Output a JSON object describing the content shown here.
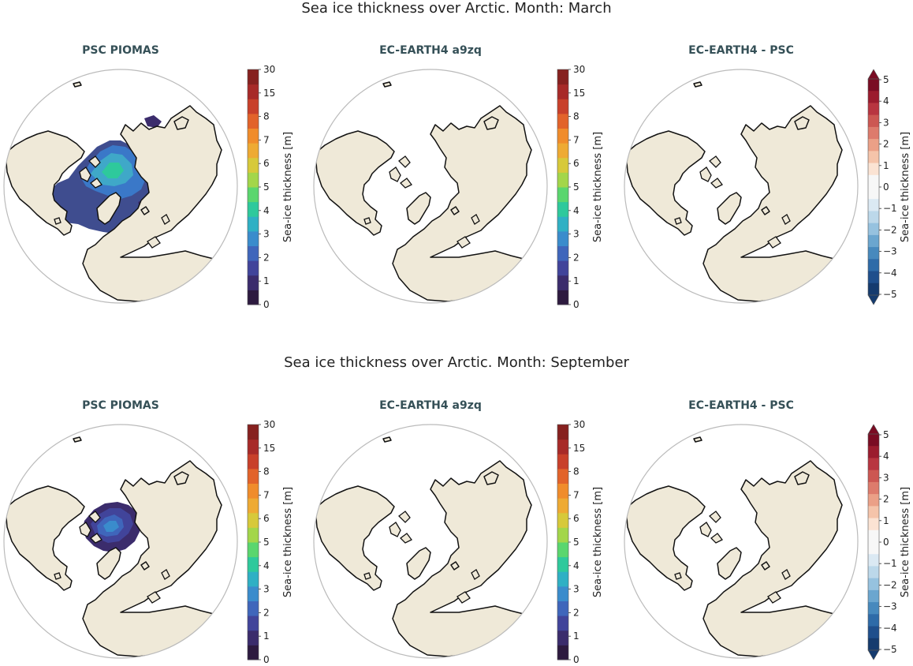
{
  "rows": [
    {
      "title": "Sea ice thickness over Arctic. Month: March",
      "panels": [
        {
          "title": "PSC PIOMAS",
          "ice": "march"
        },
        {
          "title": "EC-EARTH4 a9zq",
          "ice": "none"
        },
        {
          "title": "EC-EARTH4 -  PSC",
          "ice": "none"
        }
      ]
    },
    {
      "title": "Sea ice thickness over Arctic. Month: September",
      "panels": [
        {
          "title": "PSC PIOMAS",
          "ice": "september"
        },
        {
          "title": "EC-EARTH4 a9zq",
          "ice": "none"
        },
        {
          "title": "EC-EARTH4 -  PSC",
          "ice": "none"
        }
      ]
    }
  ],
  "colorbars": {
    "thickness": {
      "label": "Sea-ice thickness [m]",
      "ticks": [
        "0",
        "1",
        "2",
        "3",
        "4",
        "5",
        "6",
        "7",
        "8",
        "15",
        "30"
      ],
      "colors": [
        "#2d1a3f",
        "#3b2c6c",
        "#41449a",
        "#3f66bb",
        "#3a8ccc",
        "#2fb0c4",
        "#2ec99c",
        "#5ad66e",
        "#a3d64a",
        "#d7c93a",
        "#eeaa33",
        "#f08c2b",
        "#e2632a",
        "#c8402a",
        "#a72a28",
        "#86211f"
      ]
    },
    "difference": {
      "label": "Sea-ice thickness [m]",
      "ticks": [
        "5",
        "4",
        "3",
        "2",
        "1",
        "0",
        "−1",
        "−2",
        "−3",
        "−4",
        "−5"
      ],
      "colors": [
        "#7a0c23",
        "#9b1c2e",
        "#b83540",
        "#cc5752",
        "#dd7b6c",
        "#eba087",
        "#f5c4aa",
        "#fbe3d3",
        "#f7f7f7",
        "#f7f7f7",
        "#dbe9f3",
        "#bcd8ea",
        "#96c2df",
        "#6ba6cf",
        "#4789bd",
        "#2e6ba8",
        "#1f4f8c",
        "#153b6e"
      ]
    }
  },
  "colors": {
    "land": "#efe9d8",
    "coast": "#111111",
    "circle": "#bbbbbb",
    "title": "#355057"
  }
}
